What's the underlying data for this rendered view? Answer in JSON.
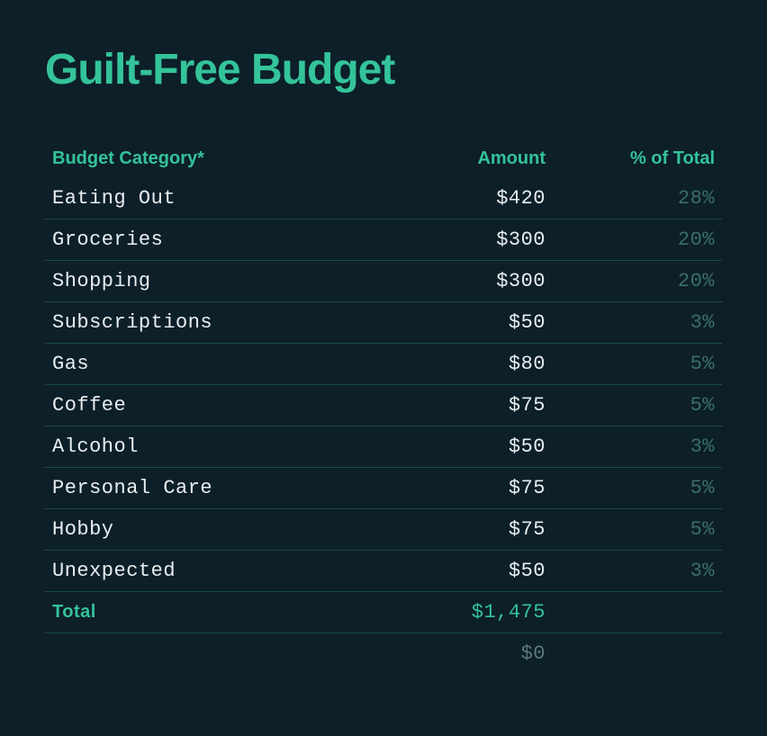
{
  "title": "Guilt-Free Budget",
  "table": {
    "type": "table",
    "columns": [
      {
        "label": "Budget Category*",
        "align": "left",
        "widthPct": 50
      },
      {
        "label": "Amount",
        "align": "right",
        "widthPct": 25
      },
      {
        "label": "% of Total",
        "align": "right",
        "widthPct": 25
      }
    ],
    "rows": [
      {
        "category": "Eating Out",
        "amount": "$420",
        "pct": "28%"
      },
      {
        "category": "Groceries",
        "amount": "$300",
        "pct": "20%"
      },
      {
        "category": "Shopping",
        "amount": "$300",
        "pct": "20%"
      },
      {
        "category": "Subscriptions",
        "amount": "$50",
        "pct": "3%"
      },
      {
        "category": "Gas",
        "amount": "$80",
        "pct": "5%"
      },
      {
        "category": "Coffee",
        "amount": "$75",
        "pct": "5%"
      },
      {
        "category": "Alcohol",
        "amount": "$50",
        "pct": "3%"
      },
      {
        "category": "Personal Care",
        "amount": "$75",
        "pct": "5%"
      },
      {
        "category": "Hobby",
        "amount": "$75",
        "pct": "5%"
      },
      {
        "category": "Unexpected",
        "amount": "$50",
        "pct": "3%"
      }
    ],
    "total": {
      "label": "Total",
      "amount": "$1,475",
      "pct": ""
    },
    "extra": {
      "amount": "$0"
    },
    "colors": {
      "background": "#0d1f29",
      "accent": "#34c39a",
      "text": "#e8eef0",
      "pctText": "#3a6f66",
      "border": "#1d4a44",
      "muted": "#5a7a74"
    },
    "fonts": {
      "title_fontsize": 48,
      "header_fontsize": 20,
      "cell_fontsize": 22,
      "header_family": "sans-serif",
      "cell_family": "monospace"
    }
  }
}
